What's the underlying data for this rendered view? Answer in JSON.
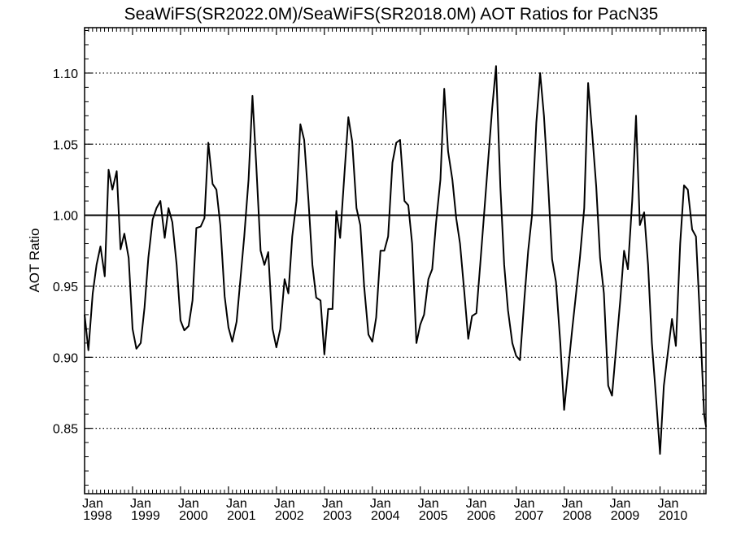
{
  "chart_data": {
    "type": "line",
    "title": "SeaWiFS(SR2022.0M)/SeaWiFS(SR2018.0M)  AOT Ratios for PacN35",
    "xlabel": "",
    "ylabel": "AOT Ratio",
    "xlim": [
      1998.0,
      2010.9583
    ],
    "ylim": [
      0.804,
      1.132
    ],
    "y_ticks": [
      {
        "value": 0.85,
        "label": "0.85"
      },
      {
        "value": 0.9,
        "label": "0.90"
      },
      {
        "value": 0.95,
        "label": "0.95"
      },
      {
        "value": 1.0,
        "label": "1.00"
      },
      {
        "value": 1.05,
        "label": "1.05"
      },
      {
        "value": 1.1,
        "label": "1.10"
      }
    ],
    "x_ticks": [
      {
        "value": 1998,
        "month": "Jan",
        "year": "1998"
      },
      {
        "value": 1999,
        "month": "Jan",
        "year": "1999"
      },
      {
        "value": 2000,
        "month": "Jan",
        "year": "2000"
      },
      {
        "value": 2001,
        "month": "Jan",
        "year": "2001"
      },
      {
        "value": 2002,
        "month": "Jan",
        "year": "2002"
      },
      {
        "value": 2003,
        "month": "Jan",
        "year": "2003"
      },
      {
        "value": 2004,
        "month": "Jan",
        "year": "2004"
      },
      {
        "value": 2005,
        "month": "Jan",
        "year": "2005"
      },
      {
        "value": 2006,
        "month": "Jan",
        "year": "2006"
      },
      {
        "value": 2007,
        "month": "Jan",
        "year": "2007"
      },
      {
        "value": 2008,
        "month": "Jan",
        "year": "2008"
      },
      {
        "value": 2009,
        "month": "Jan",
        "year": "2009"
      },
      {
        "value": 2010,
        "month": "Jan",
        "year": "2010"
      }
    ],
    "grid": "dotted horizontal",
    "reference_line": 1.0,
    "series": [
      {
        "values": [
          [
            1998.0,
            0.93
          ],
          [
            1998.08,
            0.905
          ],
          [
            1998.17,
            0.945
          ],
          [
            1998.25,
            0.965
          ],
          [
            1998.33,
            0.978
          ],
          [
            1998.42,
            0.957
          ],
          [
            1998.5,
            1.032
          ],
          [
            1998.58,
            1.018
          ],
          [
            1998.67,
            1.031
          ],
          [
            1998.75,
            0.976
          ],
          [
            1998.83,
            0.987
          ],
          [
            1998.92,
            0.97
          ],
          [
            1999.0,
            0.92
          ],
          [
            1999.08,
            0.906
          ],
          [
            1999.17,
            0.91
          ],
          [
            1999.25,
            0.935
          ],
          [
            1999.33,
            0.97
          ],
          [
            1999.42,
            0.997
          ],
          [
            1999.5,
            1.005
          ],
          [
            1999.58,
            1.01
          ],
          [
            1999.67,
            0.984
          ],
          [
            1999.75,
            1.005
          ],
          [
            1999.83,
            0.995
          ],
          [
            1999.92,
            0.965
          ],
          [
            2000.0,
            0.926
          ],
          [
            2000.08,
            0.919
          ],
          [
            2000.17,
            0.922
          ],
          [
            2000.25,
            0.94
          ],
          [
            2000.33,
            0.991
          ],
          [
            2000.42,
            0.992
          ],
          [
            2000.5,
            0.998
          ],
          [
            2000.58,
            1.051
          ],
          [
            2000.67,
            1.022
          ],
          [
            2000.75,
            1.018
          ],
          [
            2000.83,
            0.993
          ],
          [
            2000.92,
            0.943
          ],
          [
            2001.0,
            0.921
          ],
          [
            2001.08,
            0.911
          ],
          [
            2001.17,
            0.925
          ],
          [
            2001.25,
            0.955
          ],
          [
            2001.33,
            0.985
          ],
          [
            2001.42,
            1.025
          ],
          [
            2001.5,
            1.084
          ],
          [
            2001.58,
            1.035
          ],
          [
            2001.67,
            0.975
          ],
          [
            2001.75,
            0.965
          ],
          [
            2001.83,
            0.974
          ],
          [
            2001.92,
            0.92
          ],
          [
            2002.0,
            0.907
          ],
          [
            2002.08,
            0.92
          ],
          [
            2002.17,
            0.955
          ],
          [
            2002.25,
            0.945
          ],
          [
            2002.33,
            0.985
          ],
          [
            2002.42,
            1.01
          ],
          [
            2002.5,
            1.064
          ],
          [
            2002.58,
            1.053
          ],
          [
            2002.67,
            1.01
          ],
          [
            2002.75,
            0.965
          ],
          [
            2002.83,
            0.942
          ],
          [
            2002.92,
            0.94
          ],
          [
            2003.0,
            0.902
          ],
          [
            2003.08,
            0.934
          ],
          [
            2003.17,
            0.934
          ],
          [
            2003.25,
            1.003
          ],
          [
            2003.33,
            0.984
          ],
          [
            2003.42,
            1.03
          ],
          [
            2003.5,
            1.069
          ],
          [
            2003.58,
            1.052
          ],
          [
            2003.67,
            1.005
          ],
          [
            2003.75,
            0.993
          ],
          [
            2003.83,
            0.95
          ],
          [
            2003.92,
            0.916
          ],
          [
            2004.0,
            0.911
          ],
          [
            2004.08,
            0.928
          ],
          [
            2004.17,
            0.975
          ],
          [
            2004.25,
            0.975
          ],
          [
            2004.33,
            0.985
          ],
          [
            2004.42,
            1.037
          ],
          [
            2004.5,
            1.051
          ],
          [
            2004.58,
            1.053
          ],
          [
            2004.67,
            1.01
          ],
          [
            2004.75,
            1.007
          ],
          [
            2004.83,
            0.98
          ],
          [
            2004.92,
            0.91
          ],
          [
            2005.0,
            0.923
          ],
          [
            2005.08,
            0.93
          ],
          [
            2005.17,
            0.955
          ],
          [
            2005.25,
            0.962
          ],
          [
            2005.33,
            0.995
          ],
          [
            2005.42,
            1.025
          ],
          [
            2005.5,
            1.089
          ],
          [
            2005.58,
            1.045
          ],
          [
            2005.67,
            1.025
          ],
          [
            2005.75,
            0.998
          ],
          [
            2005.83,
            0.98
          ],
          [
            2005.92,
            0.945
          ],
          [
            2006.0,
            0.913
          ],
          [
            2006.08,
            0.929
          ],
          [
            2006.17,
            0.931
          ],
          [
            2006.25,
            0.965
          ],
          [
            2006.33,
            1.0
          ],
          [
            2006.42,
            1.04
          ],
          [
            2006.5,
            1.075
          ],
          [
            2006.58,
            1.105
          ],
          [
            2006.67,
            1.02
          ],
          [
            2006.75,
            0.965
          ],
          [
            2006.83,
            0.933
          ],
          [
            2006.92,
            0.91
          ],
          [
            2007.0,
            0.901
          ],
          [
            2007.08,
            0.898
          ],
          [
            2007.17,
            0.94
          ],
          [
            2007.25,
            0.975
          ],
          [
            2007.33,
            1.0
          ],
          [
            2007.42,
            1.065
          ],
          [
            2007.5,
            1.1
          ],
          [
            2007.58,
            1.07
          ],
          [
            2007.67,
            1.02
          ],
          [
            2007.75,
            0.969
          ],
          [
            2007.83,
            0.953
          ],
          [
            2007.92,
            0.91
          ],
          [
            2008.0,
            0.863
          ],
          [
            2008.08,
            0.89
          ],
          [
            2008.17,
            0.92
          ],
          [
            2008.25,
            0.945
          ],
          [
            2008.33,
            0.97
          ],
          [
            2008.42,
            1.005
          ],
          [
            2008.5,
            1.093
          ],
          [
            2008.58,
            1.06
          ],
          [
            2008.67,
            1.02
          ],
          [
            2008.75,
            0.97
          ],
          [
            2008.83,
            0.945
          ],
          [
            2008.92,
            0.88
          ],
          [
            2009.0,
            0.873
          ],
          [
            2009.08,
            0.905
          ],
          [
            2009.17,
            0.94
          ],
          [
            2009.25,
            0.975
          ],
          [
            2009.33,
            0.962
          ],
          [
            2009.42,
            1.01
          ],
          [
            2009.5,
            1.07
          ],
          [
            2009.58,
            0.993
          ],
          [
            2009.67,
            1.002
          ],
          [
            2009.75,
            0.965
          ],
          [
            2009.83,
            0.91
          ],
          [
            2009.92,
            0.87
          ],
          [
            2010.0,
            0.832
          ],
          [
            2010.08,
            0.88
          ],
          [
            2010.17,
            0.905
          ],
          [
            2010.25,
            0.927
          ],
          [
            2010.33,
            0.908
          ],
          [
            2010.42,
            0.98
          ],
          [
            2010.5,
            1.021
          ],
          [
            2010.58,
            1.018
          ],
          [
            2010.67,
            0.99
          ],
          [
            2010.75,
            0.985
          ],
          [
            2010.83,
            0.93
          ],
          [
            2010.92,
            0.86
          ],
          [
            2010.96,
            0.851
          ]
        ]
      }
    ]
  }
}
